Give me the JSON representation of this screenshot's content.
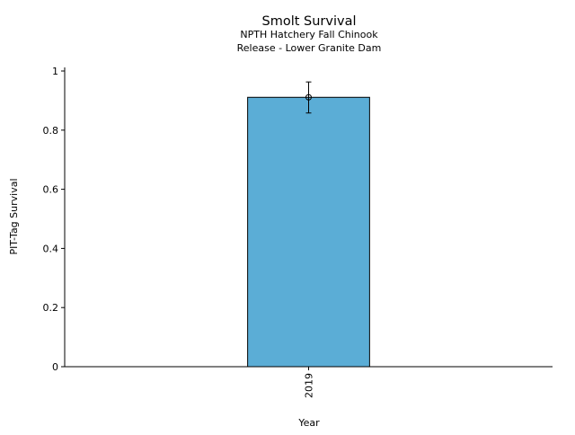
{
  "chart_data": {
    "type": "bar",
    "title": "Smolt Survival",
    "subtitle_lines": [
      "NPTH Hatchery Fall Chinook",
      "Release - Lower Granite Dam"
    ],
    "xlabel": "Year",
    "ylabel": "PIT-Tag Survival",
    "categories": [
      "2019"
    ],
    "values": [
      0.911
    ],
    "error_low": [
      0.858
    ],
    "error_high": [
      0.963
    ],
    "ylim": [
      0,
      1.01
    ],
    "yticks": [
      "0",
      "0.2",
      "0.4",
      "0.6",
      "0.8",
      "1"
    ],
    "ytick_values": [
      0,
      0.2,
      0.4,
      0.6,
      0.8,
      1
    ],
    "grid": false,
    "bar_color": "#5badd6",
    "edge_color": "#000000"
  }
}
